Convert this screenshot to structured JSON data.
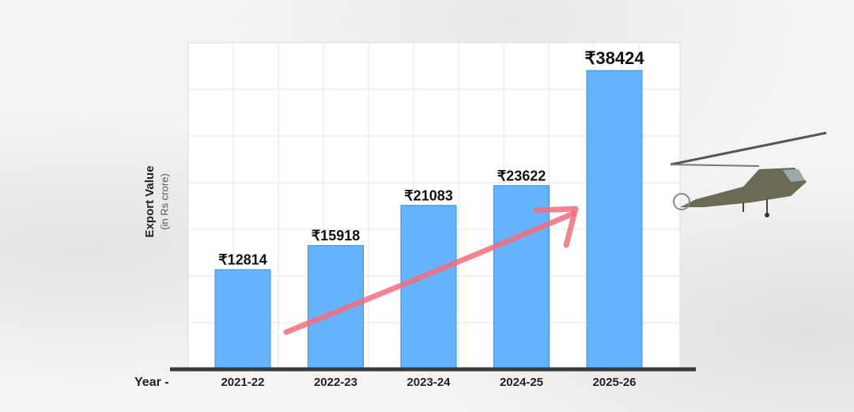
{
  "chart_data": {
    "type": "bar",
    "y_label": "Export Value",
    "y_sublabel": "(in Rs crore)",
    "x_label": "Year -",
    "categories": [
      "2021-22",
      "2022-23",
      "2023-24",
      "2024-25",
      "2025-26"
    ],
    "values": [
      12814,
      15918,
      21083,
      23622,
      38424
    ],
    "value_labels": [
      "₹12814",
      "₹15918",
      "₹21083",
      "₹23622",
      "₹38424"
    ],
    "color": "#66b3ff",
    "ylim": [
      0,
      42000
    ],
    "grid": true
  }
}
